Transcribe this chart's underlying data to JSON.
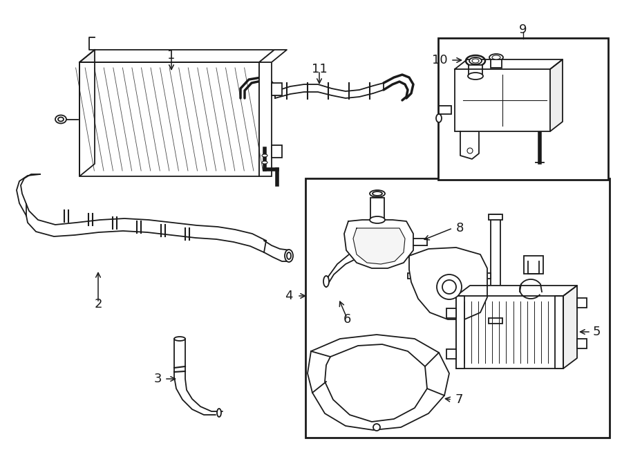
{
  "bg_color": "#ffffff",
  "line_color": "#1a1a1a",
  "lw": 1.3,
  "fig_w": 9.0,
  "fig_h": 6.61,
  "dpi": 100
}
